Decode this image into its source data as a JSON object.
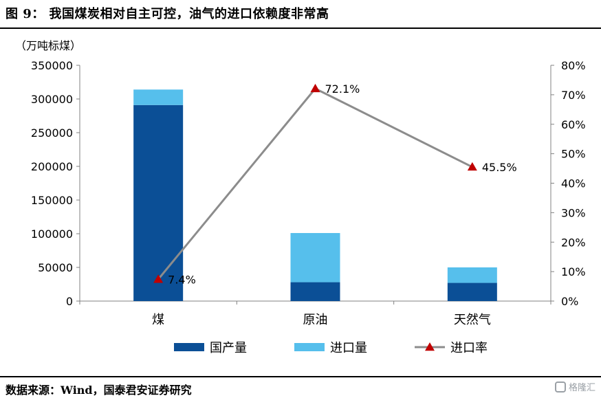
{
  "figure_title": "图 9：  我国煤炭相对自主可控，油气的进口依赖度非常高",
  "source_note": "数据来源：Wind，国泰君安证券研究",
  "watermark": "格隆汇",
  "chart_data": {
    "type": "bar",
    "stacked": true,
    "unit_label": "（万吨标煤）",
    "categories": [
      "煤",
      "原油",
      "天然气"
    ],
    "series": [
      {
        "name": "国产量",
        "type": "bar",
        "axis": "left",
        "values": [
          291000,
          28000,
          27000
        ],
        "color": "#0b4f96"
      },
      {
        "name": "进口量",
        "type": "bar",
        "axis": "left",
        "values": [
          23000,
          73000,
          23000
        ],
        "color": "#56bfec"
      },
      {
        "name": "进口率",
        "type": "line",
        "axis": "right",
        "values": [
          0.074,
          0.721,
          0.455
        ],
        "color": "#8c8c8c",
        "marker_color": "#c00000"
      }
    ],
    "point_labels": [
      "7.4%",
      "72.1%",
      "45.5%"
    ],
    "y_left": {
      "min": 0,
      "max": 350000,
      "ticks": [
        "0",
        "50000",
        "100000",
        "150000",
        "200000",
        "250000",
        "300000",
        "350000"
      ]
    },
    "y_right": {
      "min": 0,
      "max": 0.8,
      "ticks": [
        "0%",
        "10%",
        "20%",
        "30%",
        "40%",
        "50%",
        "60%",
        "70%",
        "80%"
      ]
    },
    "legend_position": "bottom",
    "grid": false
  }
}
